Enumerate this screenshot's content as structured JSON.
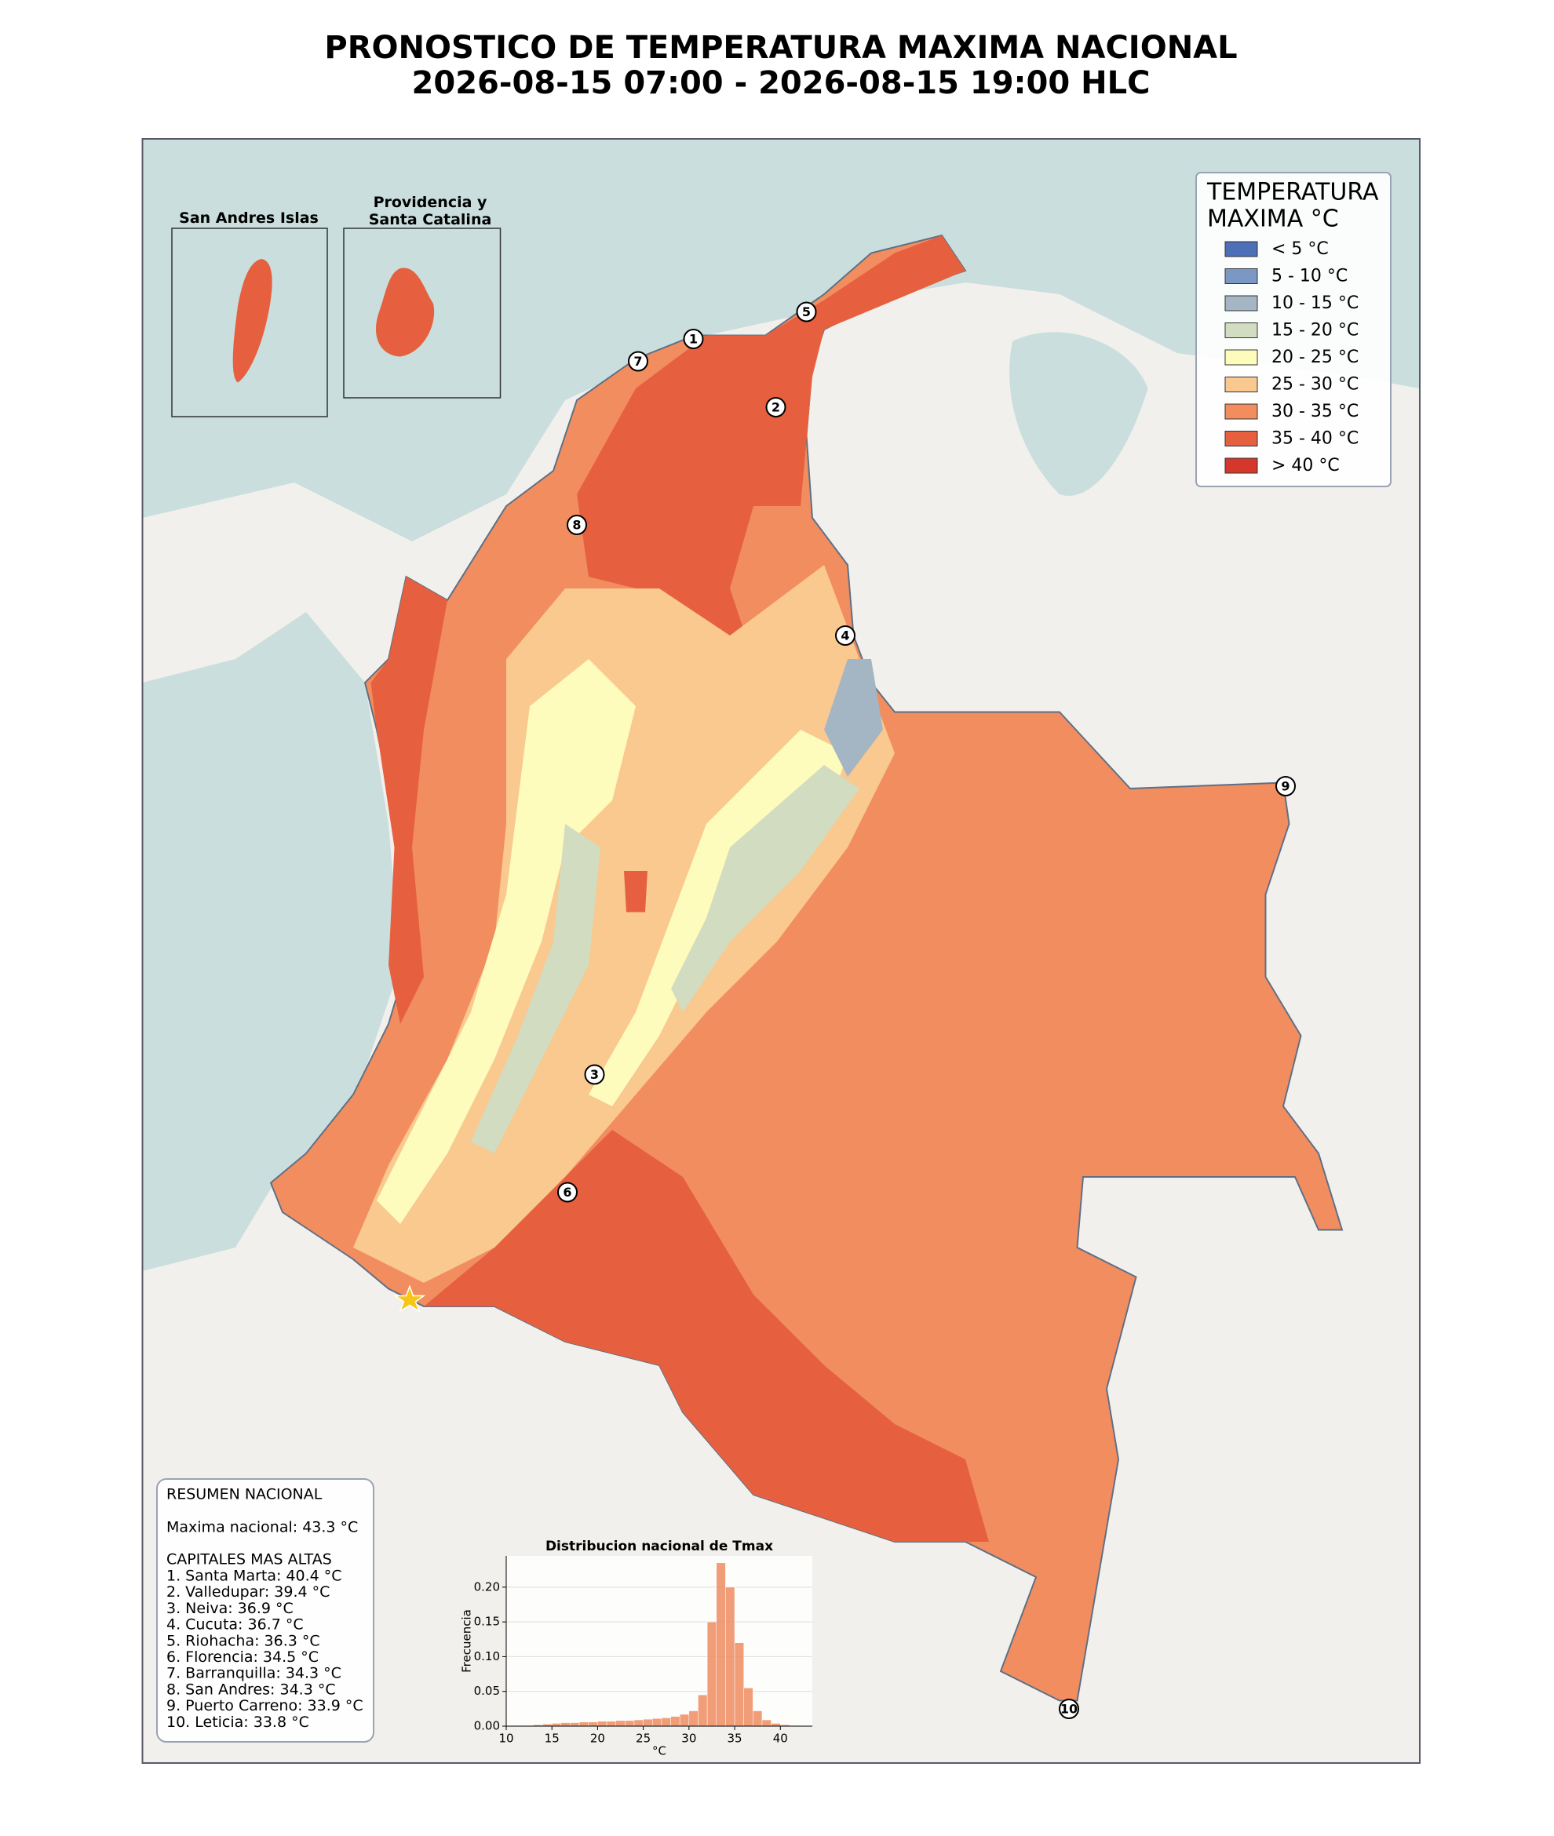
{
  "header": {
    "title_line1": "PRONOSTICO DE TEMPERATURA MAXIMA NACIONAL",
    "title_line2": "2026-08-15 07:00 - 2026-08-15 19:00 HLC"
  },
  "legend": {
    "title_lines": [
      "TEMPERATURA",
      "MAXIMA °C"
    ],
    "items": [
      {
        "label": "< 5 °C",
        "color": "#4d6fb7"
      },
      {
        "label": "5 - 10 °C",
        "color": "#7b98c4"
      },
      {
        "label": "10 - 15 °C",
        "color": "#a4b5c4"
      },
      {
        "label": "15 - 20 °C",
        "color": "#d2dcc0"
      },
      {
        "label": "20 - 25 °C",
        "color": "#fefcbc"
      },
      {
        "label": "25 - 30 °C",
        "color": "#f9c98f"
      },
      {
        "label": "30 - 35 °C",
        "color": "#f18d5e"
      },
      {
        "label": "35 - 40 °C",
        "color": "#e6603f"
      },
      {
        "label": "> 40 °C",
        "color": "#d5382b"
      }
    ]
  },
  "insets": [
    {
      "title_lines": [
        "San Andres Islas"
      ]
    },
    {
      "title_lines": [
        "Providencia y",
        "Santa Catalina"
      ]
    }
  ],
  "markers": [
    "1",
    "2",
    "3",
    "4",
    "5",
    "6",
    "7",
    "8",
    "9",
    "10"
  ],
  "summary": {
    "heading": "RESUMEN NACIONAL",
    "national_max": "Maxima nacional: 43.3 °C",
    "capitals_heading": "CAPITALES MAS ALTAS",
    "capitals": [
      "1. Santa Marta: 40.4 °C",
      "2. Valledupar: 39.4 °C",
      "3. Neiva: 36.9 °C",
      "4. Cucuta: 36.7 °C",
      "5. Riohacha: 36.3 °C",
      "6. Florencia: 34.5 °C",
      "7. Barranquilla: 34.3 °C",
      "8. San Andres: 34.3 °C",
      "9. Puerto Carreno: 33.9 °C",
      "10. Leticia: 33.8 °C"
    ]
  },
  "chart_data": {
    "type": "histogram",
    "title": "Distribucion nacional de Tmax",
    "x_label": "°C",
    "y_label": "Frecuencia",
    "color": "#ee8c60",
    "bins": [
      10,
      11,
      12,
      13,
      14,
      15,
      16,
      17,
      18,
      19,
      20,
      21,
      22,
      23,
      24,
      25,
      26,
      27,
      28,
      29,
      30,
      31,
      32,
      33,
      34,
      35,
      36,
      37,
      38,
      39,
      40,
      41,
      42,
      43
    ],
    "values": [
      0.0005,
      0.001,
      0.001,
      0.002,
      0.003,
      0.004,
      0.005,
      0.005,
      0.006,
      0.006,
      0.007,
      0.007,
      0.008,
      0.008,
      0.009,
      0.01,
      0.011,
      0.012,
      0.014,
      0.017,
      0.022,
      0.045,
      0.15,
      0.235,
      0.2,
      0.12,
      0.055,
      0.022,
      0.009,
      0.004,
      0.002,
      0.001,
      0.0005
    ],
    "xlim": [
      10,
      43.5
    ],
    "ylim": [
      0,
      0.245
    ],
    "xticks": [
      10,
      15,
      20,
      25,
      30,
      35,
      40
    ],
    "yticks": [
      {
        "value": 0,
        "label": "0.00"
      },
      {
        "value": 0.05,
        "label": "0.05"
      },
      {
        "value": 0.1,
        "label": "0.10"
      },
      {
        "value": 0.15,
        "label": "0.15"
      },
      {
        "value": 0.2,
        "label": "0.20"
      }
    ],
    "grid": true
  }
}
